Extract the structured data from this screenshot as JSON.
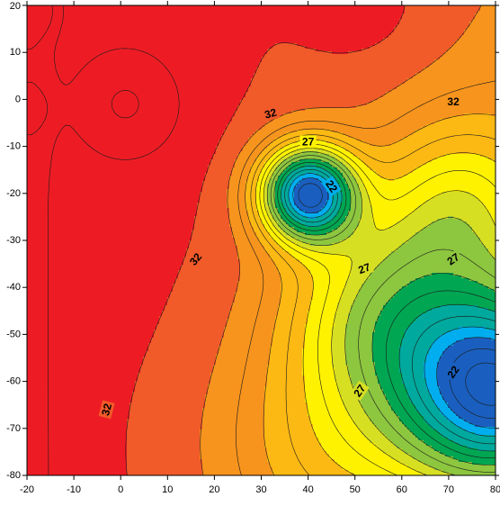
{
  "chart_data": {
    "type": "contour",
    "title": "",
    "xlabel": "",
    "ylabel": "",
    "xlim": [
      -20,
      80
    ],
    "ylim": [
      -80,
      20
    ],
    "x_ticks": [
      -20,
      -10,
      0,
      10,
      20,
      30,
      40,
      50,
      60,
      70,
      80
    ],
    "y_ticks": [
      20,
      10,
      0,
      -10,
      -20,
      -30,
      -40,
      -50,
      -60,
      -70,
      -80
    ],
    "x_tick_labels": [
      "-20",
      "-10",
      "0",
      "10",
      "20",
      "30",
      "40",
      "50",
      "60",
      "70",
      "80"
    ],
    "y_tick_labels": [
      "20",
      "10",
      "0",
      "-10",
      "-20",
      "-30",
      "-40",
      "-50",
      "-60",
      "-70",
      "-80"
    ],
    "contour_interval": 1,
    "field_range": [
      16,
      35
    ],
    "colormap": [
      "#1a5fbf",
      "#00aeef",
      "#00a99d",
      "#00a651",
      "#8dc63f",
      "#d7df23",
      "#fff200",
      "#fdb913",
      "#f7941d",
      "#f15a29",
      "#ed1c24"
    ],
    "features": [
      {
        "kind": "minimum",
        "x": 40,
        "y": -20,
        "value": 16
      },
      {
        "kind": "minimum",
        "x": 80,
        "y": -62,
        "value": 17
      },
      {
        "kind": "maximum",
        "x": 2,
        "y": -2,
        "value": 35
      },
      {
        "kind": "maximum",
        "x": -20,
        "y": 20,
        "value": 35
      },
      {
        "kind": "maximum",
        "x": -20,
        "y": -1,
        "value": 35
      }
    ],
    "contour_labels": [
      {
        "text": "32",
        "x": 32,
        "y": -3,
        "angle": -15
      },
      {
        "text": "32",
        "x": 71,
        "y": -0.5,
        "angle": 0
      },
      {
        "text": "27",
        "x": 40,
        "y": -9,
        "angle": 0
      },
      {
        "text": "22",
        "x": 45,
        "y": -18.5,
        "angle": 55
      },
      {
        "text": "27",
        "x": 52,
        "y": -36,
        "angle": -20
      },
      {
        "text": "27",
        "x": 71,
        "y": -34,
        "angle": -35
      },
      {
        "text": "32",
        "x": 16,
        "y": -34,
        "angle": -50
      },
      {
        "text": "27",
        "x": 51,
        "y": -62,
        "angle": -55
      },
      {
        "text": "22",
        "x": 71,
        "y": -58,
        "angle": -55
      },
      {
        "text": "32",
        "x": -3,
        "y": -66,
        "angle": -75
      }
    ]
  }
}
